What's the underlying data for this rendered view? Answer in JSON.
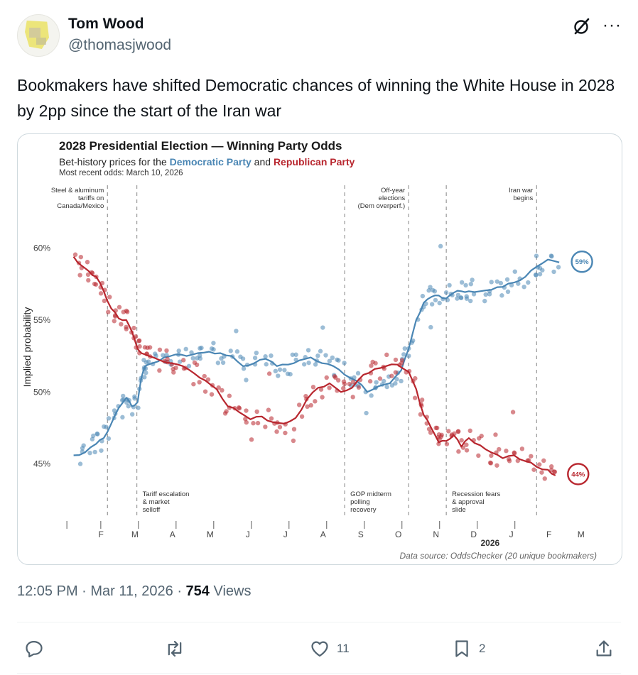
{
  "tweet": {
    "author_name": "Tom Wood",
    "author_handle": "@thomasjwood",
    "text": "Bookmakers have shifted Democratic chances of winning the White House in 2028 by 2pp since the start of the Iran war",
    "time": "12:05 PM",
    "date": "Mar 11, 2026",
    "views_count": "754",
    "views_label": "Views",
    "replies": "",
    "retweets": "",
    "likes": "11",
    "bookmarks": "2"
  },
  "icons": {
    "grok": "grok-icon",
    "more": "more-icon",
    "reply": "reply-icon",
    "retweet": "retweet-icon",
    "like": "heart-icon",
    "bookmark": "bookmark-icon",
    "share": "share-icon"
  },
  "colors": {
    "democratic": "#4a86b4",
    "republican": "#b8262e",
    "text_secondary": "#536471"
  },
  "chart_data": {
    "type": "line",
    "title": "2028 Presidential Election — Winning Party Odds",
    "subtitle_prefix": "Bet-history prices for the ",
    "subtitle_dem": "Democratic Party",
    "subtitle_mid": " and ",
    "subtitle_rep": "Republican Party",
    "subtitle_date": "Most recent odds: March 10, 2026",
    "ylabel": "Implied probability",
    "ylim": [
      44,
      61.5
    ],
    "yticks": [
      45,
      50,
      55,
      60
    ],
    "ytick_labels": [
      "45%",
      "50%",
      "55%",
      "60%"
    ],
    "xlim": [
      0,
      13.4
    ],
    "month_ticks": [
      0.55,
      1.45,
      2.45,
      3.45,
      4.45,
      5.45,
      6.45,
      7.45,
      8.45,
      9.45,
      10.45,
      11.45,
      12.45
    ],
    "month_labels": [
      "F",
      "M",
      "A",
      "M",
      "J",
      "J",
      "A",
      "S",
      "O",
      "N",
      "D",
      "J",
      "F",
      "M"
    ],
    "month_positions": [
      0.55,
      1.45,
      2.45,
      3.45,
      4.45,
      5.45,
      6.45,
      7.45,
      8.45,
      9.45,
      10.45,
      11.45,
      12.45,
      13.3
    ],
    "year_label": "2026",
    "year_position": 11.0,
    "source": "Data source: OddsChecker (20 unique bookmakers)",
    "events": [
      {
        "x": 1.1,
        "lines": [
          "Steel & aluminum",
          "tariffs on",
          "Canada/Mexico"
        ],
        "where": "top"
      },
      {
        "x": 1.88,
        "lines": [
          "Tariff escalation",
          "& market",
          "selloff"
        ],
        "where": "bottom"
      },
      {
        "x": 7.4,
        "lines": [
          "GOP midterm",
          "polling",
          "recovery"
        ],
        "where": "bottom"
      },
      {
        "x": 9.1,
        "lines": [
          "Off-year",
          "elections",
          "(Dem overperf.)"
        ],
        "where": "top"
      },
      {
        "x": 10.1,
        "lines": [
          "Recession fears",
          "& approval",
          "slide"
        ],
        "where": "bottom"
      },
      {
        "x": 12.5,
        "lines": [
          "Iran war",
          "begins"
        ],
        "where": "top"
      }
    ],
    "series": [
      {
        "name": "Democratic Party",
        "color": "#4a86b4",
        "end_label": "59%",
        "x": [
          0.2,
          0.5,
          0.8,
          1.0,
          1.2,
          1.4,
          1.6,
          1.75,
          1.9,
          2.0,
          2.1,
          2.3,
          2.6,
          2.9,
          3.2,
          3.5,
          3.8,
          4.1,
          4.4,
          4.7,
          5.0,
          5.3,
          5.6,
          5.9,
          6.2,
          6.5,
          6.8,
          7.1,
          7.4,
          7.7,
          8.0,
          8.3,
          8.6,
          8.9,
          9.1,
          9.3,
          9.5,
          9.7,
          9.9,
          10.1,
          10.3,
          10.5,
          10.7,
          11.0,
          11.3,
          11.6,
          11.9,
          12.2,
          12.5,
          12.8,
          13.1
        ],
        "values": [
          45.6,
          45.8,
          46.4,
          46.8,
          47.8,
          48.9,
          49.6,
          49.0,
          49.3,
          51.0,
          51.8,
          52.0,
          52.4,
          52.6,
          52.5,
          52.7,
          52.8,
          52.7,
          52.5,
          51.8,
          52.0,
          52.3,
          51.8,
          51.9,
          52.2,
          52.4,
          52.0,
          51.8,
          51.2,
          50.8,
          50.0,
          50.4,
          50.6,
          51.5,
          53.0,
          55.0,
          56.2,
          56.6,
          56.7,
          56.5,
          56.9,
          57.0,
          57.0,
          57.0,
          57.1,
          57.3,
          57.6,
          58.0,
          58.7,
          59.2,
          59.0
        ]
      },
      {
        "name": "Republican Party",
        "color": "#b8262e",
        "end_label": "44%",
        "x": [
          0.2,
          0.4,
          0.6,
          0.8,
          1.0,
          1.2,
          1.4,
          1.6,
          1.75,
          1.9,
          2.0,
          2.2,
          2.5,
          2.8,
          3.1,
          3.4,
          3.7,
          4.0,
          4.3,
          4.6,
          4.9,
          5.2,
          5.5,
          5.8,
          6.1,
          6.4,
          6.7,
          7.0,
          7.3,
          7.6,
          7.9,
          8.2,
          8.5,
          8.8,
          9.1,
          9.3,
          9.5,
          9.7,
          9.9,
          10.1,
          10.3,
          10.5,
          10.7,
          11.0,
          11.3,
          11.6,
          11.9,
          12.2,
          12.5,
          12.8,
          13.0
        ],
        "values": [
          59.4,
          58.8,
          58.4,
          58.0,
          57.0,
          55.8,
          55.1,
          55.0,
          54.2,
          53.0,
          52.7,
          52.5,
          52.2,
          52.0,
          51.8,
          51.3,
          50.8,
          50.2,
          49.0,
          48.6,
          48.1,
          48.3,
          47.9,
          47.8,
          48.2,
          49.5,
          50.3,
          50.6,
          50.0,
          50.3,
          51.2,
          51.6,
          51.8,
          51.9,
          51.4,
          50.2,
          48.4,
          47.5,
          46.5,
          46.6,
          47.0,
          46.2,
          46.8,
          46.3,
          45.8,
          45.4,
          45.6,
          45.2,
          44.8,
          44.6,
          44.2
        ]
      }
    ]
  }
}
